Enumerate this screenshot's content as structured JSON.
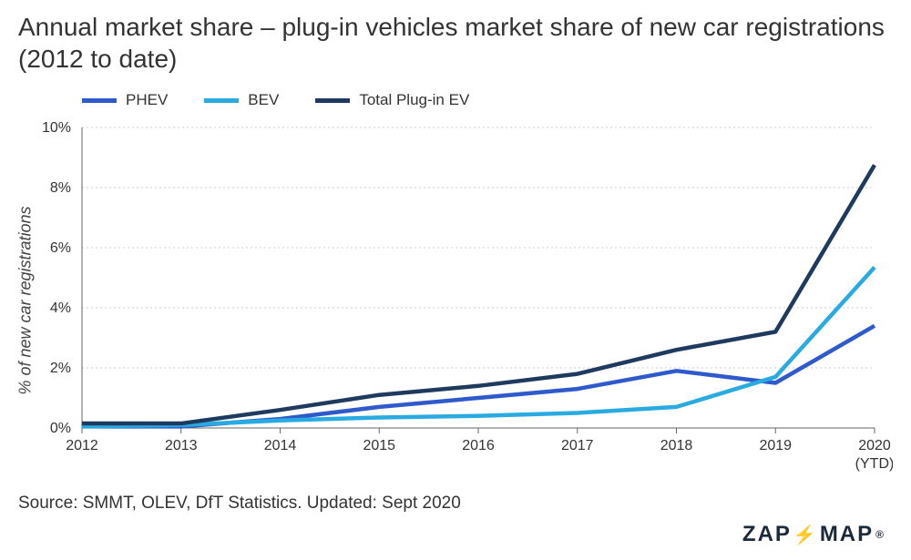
{
  "title": "Annual market share – plug-in vehicles market share of new car registrations (2012 to date)",
  "chart": {
    "type": "line",
    "ylabel": "% of new car registrations",
    "ylabel_fontsize": 18,
    "title_fontsize": 28,
    "background_color": "#ffffff",
    "grid_color": "#999999",
    "axis_color": "#666666",
    "x_categories": [
      "2012",
      "2013",
      "2014",
      "2015",
      "2016",
      "2017",
      "2018",
      "2019",
      "2020\n(YTD)"
    ],
    "y_ticks": [
      0,
      2,
      4,
      6,
      8,
      10
    ],
    "y_tick_labels": [
      "0%",
      "2%",
      "4%",
      "6%",
      "8%",
      "10%"
    ],
    "ylim": [
      0,
      10
    ],
    "line_width": 4.5,
    "series": [
      {
        "name": "PHEV",
        "color": "#2f5acb",
        "values": [
          0.05,
          0.05,
          0.3,
          0.7,
          1.0,
          1.3,
          1.9,
          1.5,
          3.4
        ]
      },
      {
        "name": "BEV",
        "color": "#29abe2",
        "values": [
          0.05,
          0.1,
          0.25,
          0.35,
          0.4,
          0.5,
          0.7,
          1.7,
          5.35
        ]
      },
      {
        "name": "Total Plug-in EV",
        "color": "#1f3a5f",
        "values": [
          0.15,
          0.15,
          0.6,
          1.1,
          1.4,
          1.8,
          2.6,
          3.2,
          8.75
        ]
      }
    ],
    "legend_position": "top-left"
  },
  "source_text": "Source: SMMT, OLEV, DfT Statistics. Updated: Sept 2020",
  "logo": {
    "text_left": "ZAP",
    "text_right": "MAP",
    "bolt_color": "#ff8c00",
    "text_color": "#1a2a3a"
  }
}
